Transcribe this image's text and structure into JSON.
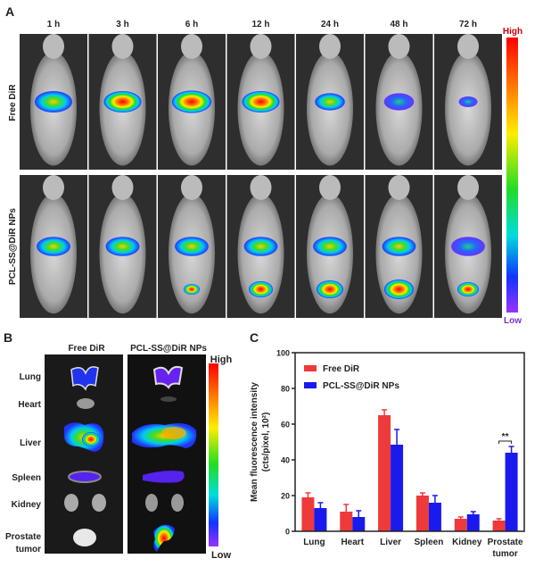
{
  "panel_a": {
    "label": "A",
    "timepoints": [
      "1 h",
      "3 h",
      "6 h",
      "12 h",
      "24 h",
      "48 h",
      "72 h"
    ],
    "rows": [
      "Free DiR",
      "PCL-SS@DiR NPs"
    ],
    "colorbar": {
      "high": "High",
      "low": "Low"
    }
  },
  "panel_b": {
    "label": "B",
    "columns": [
      "Free DiR",
      "PCL-SS@DiR NPs"
    ],
    "organs": [
      "Lung",
      "Heart",
      "Liver",
      "Spleen",
      "Kidney",
      "Prostate",
      "tumor"
    ],
    "colorbar": {
      "high": "High",
      "low": "Low"
    }
  },
  "panel_c": {
    "label": "C"
  },
  "chart_data": {
    "type": "bar",
    "title": "",
    "ylabel_line1": "Mean fluorescence intensity",
    "ylabel_line2": "(cts/pixel, 10²)",
    "xlabel": "",
    "ylim": [
      0,
      100
    ],
    "yticks": [
      "0",
      "20",
      "40",
      "60",
      "80",
      "100"
    ],
    "categories": [
      "Lung",
      "Heart",
      "Liver",
      "Spleen",
      "Kidney",
      "Prostate"
    ],
    "category_second_line": [
      "",
      "",
      "",
      "",
      "",
      "tumor"
    ],
    "series": [
      {
        "name": "Free DiR",
        "color": "#ee3a3a",
        "values": [
          19,
          11,
          65,
          20,
          7,
          6
        ],
        "errors": [
          2.5,
          4,
          3,
          1.5,
          1,
          1
        ]
      },
      {
        "name": "PCL-SS@DiR NPs",
        "color": "#1a1aee",
        "values": [
          13,
          8,
          48.5,
          16,
          9.5,
          44
        ],
        "errors": [
          3,
          3.5,
          8.5,
          4,
          1.5,
          3.5
        ]
      }
    ],
    "legend_position": "top-left",
    "annotations": [
      {
        "category": "Prostate",
        "text": "**"
      }
    ]
  }
}
